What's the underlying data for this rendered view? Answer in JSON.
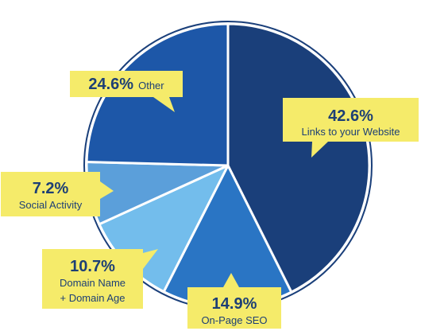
{
  "chart_data": {
    "type": "pie",
    "title": "",
    "slices": [
      {
        "pct_label": "42.6%",
        "label": "Links to your Website",
        "value": 42.6,
        "color": "#1a3f7a"
      },
      {
        "pct_label": "14.9%",
        "label": "On-Page SEO",
        "value": 14.9,
        "color": "#2a75c4"
      },
      {
        "pct_label": "10.7%",
        "label": "Domain Name\n+ Domain Age",
        "value": 10.7,
        "color": "#73bdec"
      },
      {
        "pct_label": "7.2%",
        "label": "Social Activity",
        "value": 7.2,
        "color": "#5b9fda"
      },
      {
        "pct_label": "24.6%",
        "label": "Other",
        "value": 24.6,
        "color": "#1d57a8"
      }
    ],
    "legend": "none",
    "callout_color": "#f5eb6a",
    "start_angle_deg": 0,
    "direction": "clockwise"
  }
}
